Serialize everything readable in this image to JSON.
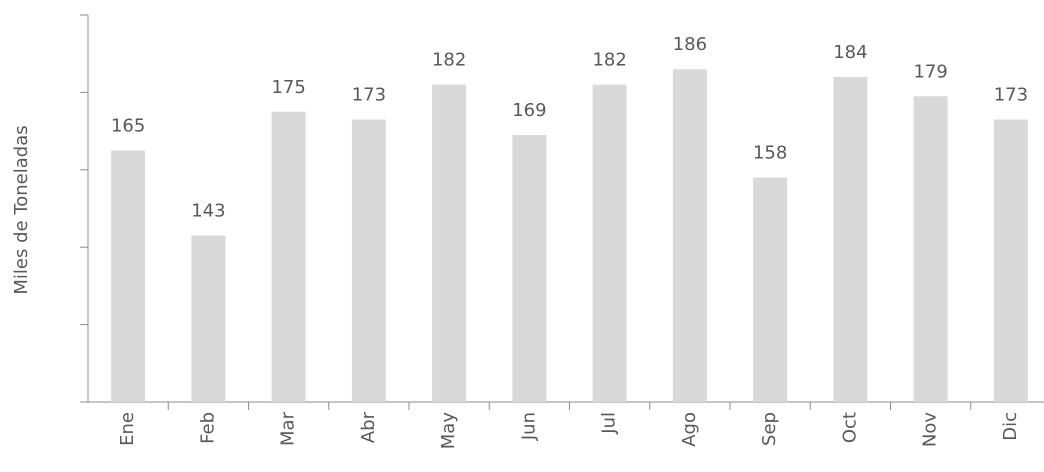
{
  "chart_data": {
    "type": "bar",
    "y_label": "Miles de Toneladas",
    "categories": [
      "Ene",
      "Feb",
      "Mar",
      "Abr",
      "May",
      "Jun",
      "Jul",
      "Ago",
      "Sep",
      "Oct",
      "Nov",
      "Dic"
    ],
    "values": [
      165,
      143,
      175,
      173,
      182,
      169,
      182,
      186,
      158,
      184,
      179,
      173
    ],
    "color": "#d9d9d9",
    "ylim": [
      100,
      200
    ],
    "yticks": [
      100,
      120,
      140,
      160,
      180,
      200
    ],
    "grid": false
  }
}
